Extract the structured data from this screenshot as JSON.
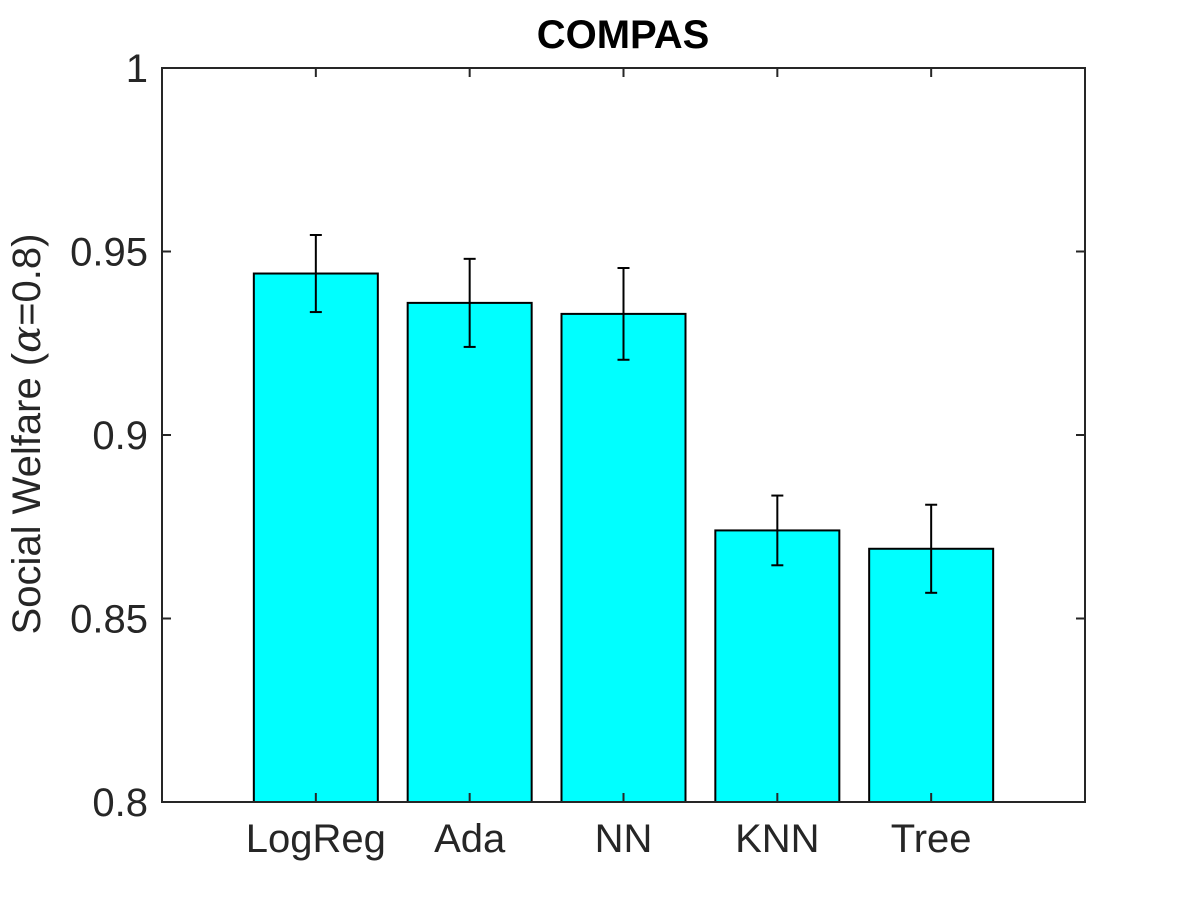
{
  "chart_data": {
    "type": "bar",
    "title": "COMPAS",
    "ylabel_prefix": "Social Welfare (",
    "ylabel_symbol": "α",
    "ylabel_suffix": "=0.8)",
    "xlabel": "",
    "categories": [
      "LogReg",
      "Ada",
      "NN",
      "KNN",
      "Tree"
    ],
    "values": [
      0.944,
      0.936,
      0.933,
      0.874,
      0.869
    ],
    "errors": [
      0.0105,
      0.012,
      0.0125,
      0.0095,
      0.012
    ],
    "ylim": [
      0.8,
      1
    ],
    "yticks": [
      0.8,
      0.85,
      0.9,
      0.95,
      1
    ],
    "ytick_labels": [
      "0.8",
      "0.85",
      "0.9",
      "0.95",
      "1"
    ],
    "bar_color": "#00ffff",
    "edge_color": "#000000",
    "grid": false,
    "box": true
  }
}
